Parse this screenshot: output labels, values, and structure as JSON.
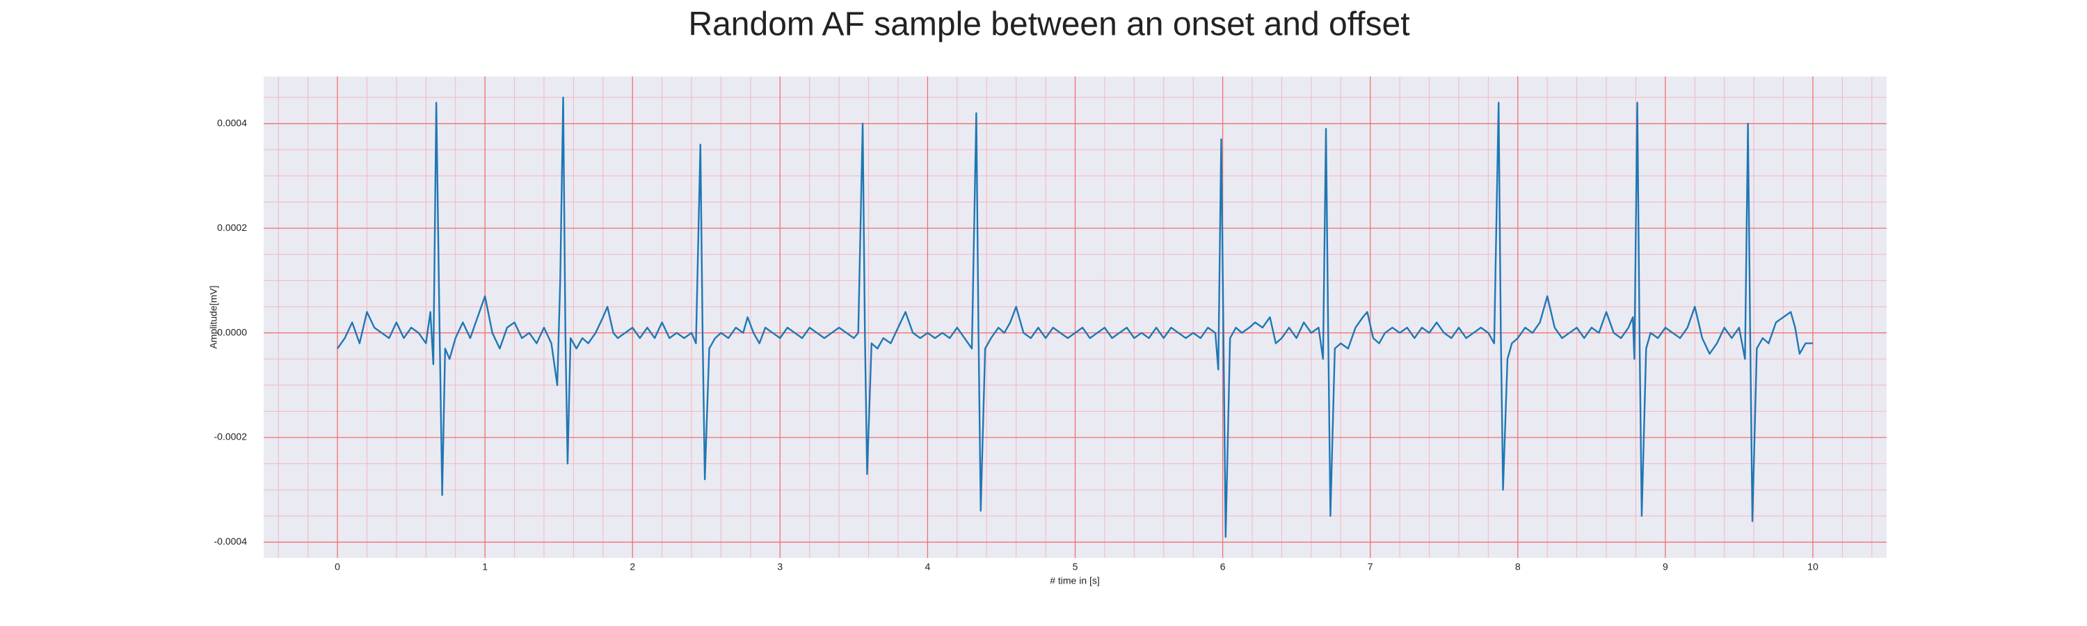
{
  "chart_data": {
    "type": "line",
    "title": "Random AF sample between an onset and offset",
    "xlabel": "# time in [s]",
    "ylabel": "Amplitude[mV]",
    "color": "#1f77b4",
    "grid": true,
    "minor_grid": true,
    "xlim": [
      -0.5,
      10.5
    ],
    "ylim": [
      -0.00043,
      0.00049
    ],
    "xticks": [
      0,
      1,
      2,
      3,
      4,
      5,
      6,
      7,
      8,
      9,
      10
    ],
    "yticks": [
      -0.0004,
      -0.0002,
      {
        "value": 0,
        "label": "0.0000"
      },
      0.0002,
      0.0004
    ],
    "x": [
      0,
      0.05,
      0.1,
      0.15,
      0.2,
      0.25,
      0.3,
      0.35,
      0.4,
      0.45,
      0.5,
      0.55,
      0.6,
      0.63,
      0.65,
      0.67,
      0.69,
      0.71,
      0.73,
      0.76,
      0.8,
      0.85,
      0.9,
      0.95,
      1,
      1.05,
      1.1,
      1.15,
      1.2,
      1.25,
      1.3,
      1.35,
      1.4,
      1.45,
      1.49,
      1.51,
      1.53,
      1.545,
      1.56,
      1.58,
      1.62,
      1.66,
      1.7,
      1.75,
      1.8,
      1.83,
      1.87,
      1.9,
      1.95,
      2,
      2.05,
      2.1,
      2.15,
      2.2,
      2.25,
      2.3,
      2.35,
      2.4,
      2.43,
      2.46,
      2.475,
      2.49,
      2.52,
      2.56,
      2.6,
      2.65,
      2.7,
      2.75,
      2.78,
      2.82,
      2.86,
      2.9,
      2.95,
      3,
      3.05,
      3.1,
      3.15,
      3.2,
      3.25,
      3.3,
      3.35,
      3.4,
      3.45,
      3.5,
      3.53,
      3.56,
      3.575,
      3.59,
      3.62,
      3.66,
      3.7,
      3.75,
      3.8,
      3.85,
      3.9,
      3.95,
      4,
      4.05,
      4.1,
      4.15,
      4.2,
      4.25,
      4.3,
      4.33,
      4.345,
      4.36,
      4.39,
      4.43,
      4.48,
      4.52,
      4.56,
      4.6,
      4.65,
      4.7,
      4.75,
      4.8,
      4.85,
      4.9,
      4.95,
      5,
      5.05,
      5.1,
      5.15,
      5.2,
      5.25,
      5.3,
      5.35,
      5.4,
      5.45,
      5.5,
      5.55,
      5.6,
      5.65,
      5.7,
      5.75,
      5.8,
      5.85,
      5.9,
      5.95,
      5.97,
      5.99,
      6.005,
      6.02,
      6.05,
      6.09,
      6.13,
      6.18,
      6.22,
      6.27,
      6.32,
      6.36,
      6.4,
      6.45,
      6.5,
      6.55,
      6.6,
      6.65,
      6.68,
      6.7,
      6.715,
      6.73,
      6.76,
      6.8,
      6.85,
      6.9,
      6.95,
      6.98,
      7.02,
      7.06,
      7.1,
      7.15,
      7.2,
      7.25,
      7.3,
      7.35,
      7.4,
      7.45,
      7.5,
      7.55,
      7.6,
      7.65,
      7.7,
      7.75,
      7.8,
      7.84,
      7.87,
      7.885,
      7.9,
      7.93,
      7.96,
      8,
      8.05,
      8.1,
      8.15,
      8.2,
      8.25,
      8.3,
      8.35,
      8.4,
      8.45,
      8.5,
      8.55,
      8.6,
      8.65,
      8.7,
      8.75,
      8.78,
      8.79,
      8.81,
      8.825,
      8.84,
      8.87,
      8.9,
      8.95,
      9,
      9.05,
      9.1,
      9.15,
      9.2,
      9.25,
      9.3,
      9.35,
      9.4,
      9.45,
      9.5,
      9.54,
      9.56,
      9.575,
      9.59,
      9.62,
      9.66,
      9.7,
      9.75,
      9.8,
      9.85,
      9.88,
      9.91,
      9.95,
      10
    ],
    "values": [
      -3e-05,
      -1e-05,
      2e-05,
      -2e-05,
      4e-05,
      1e-05,
      0,
      -1e-05,
      2e-05,
      -1e-05,
      1e-05,
      0,
      -2e-05,
      4e-05,
      -6e-05,
      0.00044,
      5e-05,
      -0.00031,
      -3e-05,
      -5e-05,
      -1e-05,
      2e-05,
      -1e-05,
      3e-05,
      7e-05,
      0,
      -3e-05,
      1e-05,
      2e-05,
      -1e-05,
      0,
      -2e-05,
      1e-05,
      -2e-05,
      -0.0001,
      0.0001,
      0.00045,
      0,
      -0.00025,
      -1e-05,
      -3e-05,
      -1e-05,
      -2e-05,
      0,
      3e-05,
      5e-05,
      0,
      -1e-05,
      0,
      1e-05,
      -1e-05,
      1e-05,
      -1e-05,
      2e-05,
      -1e-05,
      0,
      -1e-05,
      0,
      -2e-05,
      0.00036,
      0,
      -0.00028,
      -3e-05,
      -1e-05,
      0,
      -1e-05,
      1e-05,
      0,
      3e-05,
      0,
      -2e-05,
      1e-05,
      0,
      -1e-05,
      1e-05,
      0,
      -1e-05,
      1e-05,
      0,
      -1e-05,
      0,
      1e-05,
      0,
      -1e-05,
      0,
      0.0004,
      0,
      -0.00027,
      -2e-05,
      -3e-05,
      -1e-05,
      -2e-05,
      1e-05,
      4e-05,
      0,
      -1e-05,
      0,
      -1e-05,
      0,
      -1e-05,
      1e-05,
      -1e-05,
      -3e-05,
      0.00042,
      0,
      -0.00034,
      -3e-05,
      -1e-05,
      1e-05,
      0,
      2e-05,
      5e-05,
      0,
      -1e-05,
      1e-05,
      -1e-05,
      1e-05,
      0,
      -1e-05,
      0,
      1e-05,
      -1e-05,
      0,
      1e-05,
      -1e-05,
      0,
      1e-05,
      -1e-05,
      0,
      -1e-05,
      1e-05,
      -1e-05,
      1e-05,
      0,
      -1e-05,
      0,
      -1e-05,
      1e-05,
      0,
      -7e-05,
      0.00037,
      0,
      -0.00039,
      -1e-05,
      1e-05,
      0,
      1e-05,
      2e-05,
      1e-05,
      3e-05,
      -2e-05,
      -1e-05,
      1e-05,
      -1e-05,
      2e-05,
      0,
      1e-05,
      -5e-05,
      0.00039,
      0,
      -0.00035,
      -3e-05,
      -2e-05,
      -3e-05,
      1e-05,
      3e-05,
      4e-05,
      -1e-05,
      -2e-05,
      0,
      1e-05,
      0,
      1e-05,
      -1e-05,
      1e-05,
      0,
      2e-05,
      0,
      -1e-05,
      1e-05,
      -1e-05,
      0,
      1e-05,
      0,
      -2e-05,
      0.00044,
      0,
      -0.0003,
      -5e-05,
      -2e-05,
      -1e-05,
      1e-05,
      0,
      2e-05,
      7e-05,
      1e-05,
      -1e-05,
      0,
      1e-05,
      -1e-05,
      1e-05,
      0,
      4e-05,
      0,
      -1e-05,
      1e-05,
      3e-05,
      -5e-05,
      0.00044,
      0,
      -0.00035,
      -3e-05,
      0,
      -1e-05,
      1e-05,
      0,
      -1e-05,
      1e-05,
      5e-05,
      -1e-05,
      -4e-05,
      -2e-05,
      1e-05,
      -1e-05,
      1e-05,
      -5e-05,
      0.0004,
      0,
      -0.00036,
      -3e-05,
      -1e-05,
      -2e-05,
      2e-05,
      3e-05,
      4e-05,
      1e-05,
      -4e-05,
      -2e-05,
      -2e-05
    ]
  }
}
